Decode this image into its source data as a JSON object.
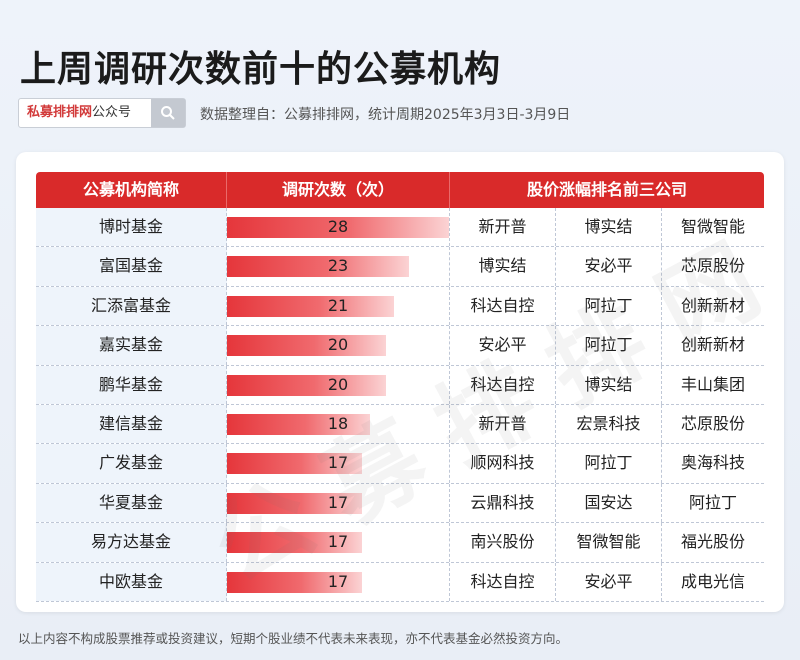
{
  "title": "上周调研次数前十的公募机构",
  "search": {
    "brand": "私募排排网",
    "suffix": "公众号",
    "icon": "search-icon"
  },
  "source": "数据整理自：公募排排网，统计周期2025年3月3日-3月9日",
  "watermark": "公募排排网",
  "footer": "以上内容不构成股票推荐或投资建议，短期个股业绩不代表未来表现，亦不代表基金必然投资方向。",
  "colors": {
    "header": "#d92a2a",
    "bar": "#e5363b"
  },
  "chart_data": {
    "type": "bar",
    "headers": [
      "公募机构简称",
      "调研次数（次）",
      "股价涨幅排名前三公司"
    ],
    "categories": [
      "博时基金",
      "富国基金",
      "汇添富基金",
      "嘉实基金",
      "鹏华基金",
      "建信基金",
      "广发基金",
      "华夏基金",
      "易方达基金",
      "中欧基金"
    ],
    "values": [
      28,
      23,
      21,
      20,
      20,
      18,
      17,
      17,
      17,
      17
    ],
    "top_companies": [
      [
        "新开普",
        "博实结",
        "智微智能"
      ],
      [
        "博实结",
        "安必平",
        "芯原股份"
      ],
      [
        "科达自控",
        "阿拉丁",
        "创新新材"
      ],
      [
        "安必平",
        "阿拉丁",
        "创新新材"
      ],
      [
        "科达自控",
        "博实结",
        "丰山集团"
      ],
      [
        "新开普",
        "宏景科技",
        "芯原股份"
      ],
      [
        "顺网科技",
        "阿拉丁",
        "奥海科技"
      ],
      [
        "云鼎科技",
        "国安达",
        "阿拉丁"
      ],
      [
        "南兴股份",
        "智微智能",
        "福光股份"
      ],
      [
        "科达自控",
        "安必平",
        "成电光信"
      ]
    ]
  }
}
